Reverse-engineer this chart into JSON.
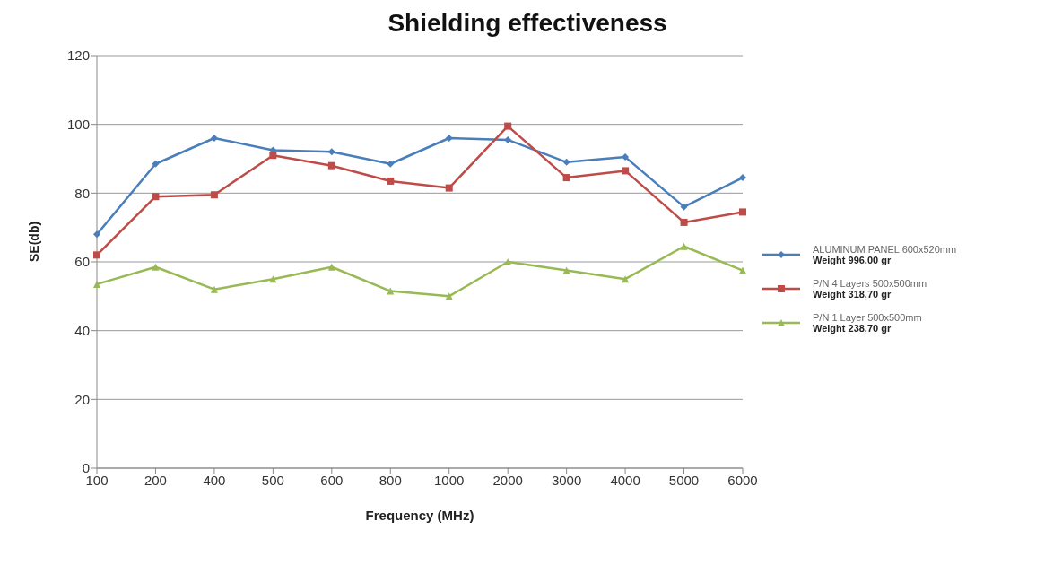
{
  "chart_data": {
    "type": "line",
    "title": "Shielding effectiveness",
    "xlabel": "Frequency (MHz)",
    "ylabel": "SE(db)",
    "categories": [
      "100",
      "200",
      "400",
      "500",
      "600",
      "800",
      "1000",
      "2000",
      "3000",
      "4000",
      "5000",
      "6000"
    ],
    "series": [
      {
        "name": "ALUMINUM PANEL 600x520mm\nWeight 996,00 gr",
        "color": "#4a7ebb",
        "marker": "diamond",
        "values": [
          68,
          88.5,
          96,
          92.5,
          92,
          88.5,
          96,
          95.5,
          89,
          90.5,
          76,
          84.5
        ]
      },
      {
        "name": "P/N 4 Layers 500x500mm\nWeight 318,70 gr",
        "color": "#be4b48",
        "marker": "square",
        "values": [
          62,
          79,
          79.5,
          91,
          88,
          83.5,
          81.5,
          99.5,
          84.5,
          86.5,
          71.5,
          74.5
        ]
      },
      {
        "name": "P/N 1 Layer 500x500mm\nWeight 238,70 gr",
        "color": "#98b954",
        "marker": "triangle",
        "values": [
          53.5,
          58.5,
          52,
          55,
          58.5,
          51.5,
          50,
          60,
          57.5,
          55,
          64.5,
          57.5
        ]
      }
    ],
    "ylim": [
      0,
      120
    ],
    "yticks": [
      0,
      20,
      40,
      60,
      80,
      100,
      120
    ],
    "grid": "y",
    "legend": "right",
    "line_style": "solid"
  }
}
